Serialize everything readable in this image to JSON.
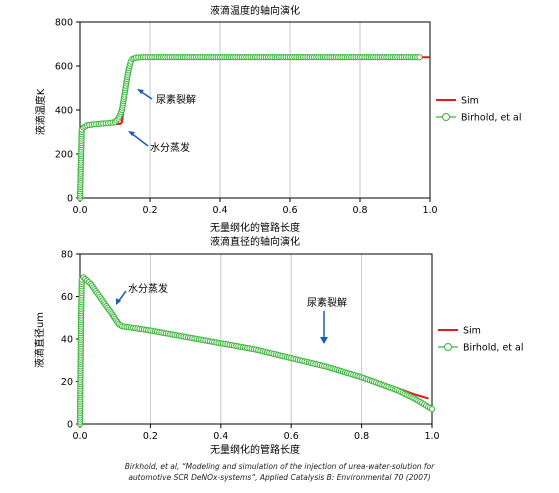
{
  "colors": {
    "sim": "#e21b1b",
    "exp": "#3cb43c",
    "grid": "#c8c8c8"
  },
  "chart_data": [
    {
      "type": "line",
      "title": "液滴温度的轴向演化",
      "xlabel": "无量纲化的管路长度",
      "ylabel": "液滴温度K",
      "xlim": [
        0,
        1.0
      ],
      "ylim": [
        0,
        800
      ],
      "xticks": [
        "0.0",
        "0.2",
        "0.4",
        "0.6",
        "0.8",
        "1.0"
      ],
      "yticks": [
        "0",
        "200",
        "400",
        "600",
        "800"
      ],
      "grid": "vertical",
      "legend_position": "right",
      "annotations": [
        "尿素裂解",
        "水分蒸发"
      ],
      "series": [
        {
          "name": "Sim",
          "x": [
            0,
            0.005,
            0.01,
            0.02,
            0.05,
            0.08,
            0.1,
            0.115,
            0.12,
            0.13,
            0.14,
            0.15,
            0.16,
            0.2,
            0.4,
            0.6,
            0.8,
            1.0
          ],
          "y": [
            0,
            300,
            320,
            330,
            335,
            335,
            336,
            337,
            345,
            480,
            600,
            635,
            640,
            640,
            640,
            640,
            640,
            640
          ]
        },
        {
          "name": "Birhold, et al",
          "x": [
            0,
            0.005,
            0.01,
            0.02,
            0.04,
            0.06,
            0.08,
            0.1,
            0.11,
            0.12,
            0.125,
            0.13,
            0.135,
            0.14,
            0.145,
            0.15,
            0.16,
            0.18,
            0.2,
            0.3,
            0.4,
            0.5,
            0.6,
            0.7,
            0.8,
            0.9,
            0.97
          ],
          "y": [
            0,
            310,
            320,
            330,
            335,
            338,
            340,
            345,
            360,
            400,
            450,
            500,
            550,
            590,
            620,
            632,
            638,
            640,
            640,
            640,
            640,
            640,
            640,
            640,
            640,
            640,
            640
          ]
        }
      ]
    },
    {
      "type": "line",
      "title": "液滴直径的轴向演化",
      "xlabel": "无量纲化的管路长度",
      "ylabel": "液滴直径um",
      "xlim": [
        0,
        1.0
      ],
      "ylim": [
        0,
        80
      ],
      "xticks": [
        "0.0",
        "0.2",
        "0.4",
        "0.6",
        "0.8",
        "1.0"
      ],
      "yticks": [
        "0",
        "20",
        "40",
        "60",
        "80"
      ],
      "grid": "vertical",
      "legend_position": "right",
      "annotations": [
        "水分蒸发",
        "尿素裂解"
      ],
      "series": [
        {
          "name": "Sim",
          "x": [
            0,
            0.002,
            0.005,
            0.01,
            0.03,
            0.06,
            0.09,
            0.11,
            0.12,
            0.2,
            0.3,
            0.4,
            0.5,
            0.6,
            0.7,
            0.8,
            0.9,
            0.95,
            0.99
          ],
          "y": [
            0,
            40,
            68,
            69,
            66,
            59,
            52,
            47,
            46,
            44,
            41,
            38,
            35,
            31,
            27,
            22,
            17,
            14,
            12
          ]
        },
        {
          "name": "Birhold, et al",
          "x": [
            0,
            0.003,
            0.005,
            0.01,
            0.03,
            0.06,
            0.09,
            0.11,
            0.12,
            0.2,
            0.3,
            0.4,
            0.5,
            0.6,
            0.7,
            0.8,
            0.9,
            0.95,
            1.0
          ],
          "y": [
            0,
            50,
            68,
            69,
            66,
            59,
            52,
            47,
            46,
            44,
            41,
            38,
            35,
            31,
            27,
            22,
            16,
            12,
            7
          ]
        }
      ]
    }
  ],
  "caption_line1": "Birkhold, et al, “Modeling and simulation of the injection of urea-water-solution for",
  "caption_line2": "automotive SCR DeNOx-systems”, Applied Catalysis B: Environmental 70 (2007)"
}
